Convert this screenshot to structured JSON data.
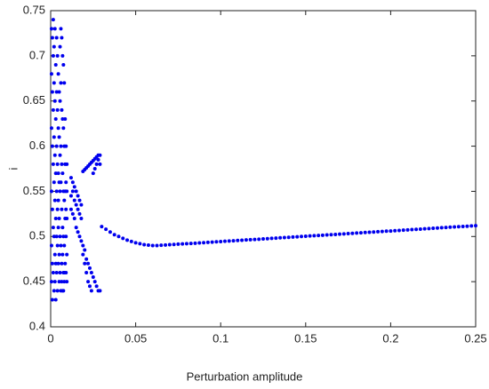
{
  "chart_data": {
    "type": "scatter",
    "x_label": "Perturbation amplitude",
    "y_label": "i",
    "color": "#0000ee",
    "xlim": [
      0,
      0.25
    ],
    "xticks": [
      0,
      0.05,
      0.1,
      0.15,
      0.2,
      0.25
    ],
    "ylim": [
      0.4,
      0.75
    ],
    "yticks": [
      0.4,
      0.45,
      0.5,
      0.55,
      0.6,
      0.65,
      0.7,
      0.75
    ],
    "x": [
      0.0005,
      0.0005,
      0.0005,
      0.0005,
      0.0005,
      0.0005,
      0.001,
      0.001,
      0.001,
      0.001,
      0.001,
      0.001,
      0.0015,
      0.0015,
      0.0015,
      0.0015,
      0.0015,
      0.0015,
      0.002,
      0.002,
      0.002,
      0.002,
      0.002,
      0.002,
      0.0025,
      0.0025,
      0.0025,
      0.0025,
      0.0025,
      0.0025,
      0.003,
      0.003,
      0.003,
      0.003,
      0.003,
      0.003,
      0.0035,
      0.0035,
      0.0035,
      0.0035,
      0.0035,
      0.0035,
      0.004,
      0.004,
      0.004,
      0.004,
      0.004,
      0.004,
      0.0045,
      0.0045,
      0.0045,
      0.0045,
      0.0045,
      0.0045,
      0.005,
      0.005,
      0.005,
      0.005,
      0.005,
      0.005,
      0.0055,
      0.0055,
      0.0055,
      0.0055,
      0.0055,
      0.0055,
      0.006,
      0.006,
      0.006,
      0.006,
      0.006,
      0.006,
      0.0065,
      0.0065,
      0.0065,
      0.0065,
      0.0065,
      0.0065,
      0.007,
      0.007,
      0.007,
      0.007,
      0.007,
      0.007,
      0.0075,
      0.0075,
      0.0075,
      0.0075,
      0.0075,
      0.0075,
      0.008,
      0.008,
      0.008,
      0.008,
      0.008,
      0.008,
      0.0085,
      0.0085,
      0.0085,
      0.0085,
      0.0085,
      0.009,
      0.009,
      0.009,
      0.009,
      0.009,
      0.0095,
      0.0095,
      0.0095,
      0.0095,
      0.0095,
      0.012,
      0.012,
      0.012,
      0.013,
      0.013,
      0.013,
      0.014,
      0.014,
      0.014,
      0.015,
      0.015,
      0.015,
      0.016,
      0.016,
      0.016,
      0.017,
      0.017,
      0.017,
      0.018,
      0.018,
      0.018,
      0.019,
      0.019,
      0.019,
      0.02,
      0.02,
      0.02,
      0.021,
      0.021,
      0.021,
      0.022,
      0.022,
      0.022,
      0.023,
      0.023,
      0.023,
      0.024,
      0.024,
      0.024,
      0.025,
      0.025,
      0.025,
      0.026,
      0.026,
      0.026,
      0.027,
      0.027,
      0.027,
      0.028,
      0.028,
      0.028,
      0.029,
      0.029,
      0.029,
      0.03,
      0.0325,
      0.035,
      0.0375,
      0.04,
      0.0425,
      0.045,
      0.0475,
      0.05,
      0.0525,
      0.055,
      0.0575,
      0.06,
      0.0625,
      0.065,
      0.0675,
      0.07,
      0.0725,
      0.075,
      0.0775,
      0.08,
      0.0825,
      0.085,
      0.0875,
      0.09,
      0.0925,
      0.095,
      0.0975,
      0.1,
      0.1025,
      0.105,
      0.1075,
      0.11,
      0.1125,
      0.115,
      0.1175,
      0.12,
      0.1225,
      0.125,
      0.1275,
      0.13,
      0.1325,
      0.135,
      0.1375,
      0.14,
      0.1425,
      0.145,
      0.1475,
      0.15,
      0.1525,
      0.155,
      0.1575,
      0.16,
      0.1625,
      0.165,
      0.1675,
      0.17,
      0.1725,
      0.175,
      0.1775,
      0.18,
      0.1825,
      0.185,
      0.1875,
      0.19,
      0.1925,
      0.195,
      0.1975,
      0.2,
      0.2025,
      0.205,
      0.2075,
      0.21,
      0.2125,
      0.215,
      0.2175,
      0.22,
      0.2225,
      0.225,
      0.2275,
      0.23,
      0.2325,
      0.235,
      0.2375,
      0.24,
      0.2425,
      0.245,
      0.2475,
      0.25
    ],
    "values": [
      0.73,
      0.68,
      0.62,
      0.55,
      0.49,
      0.45,
      0.72,
      0.66,
      0.6,
      0.53,
      0.47,
      0.43,
      0.74,
      0.7,
      0.64,
      0.58,
      0.51,
      0.46,
      0.71,
      0.67,
      0.61,
      0.56,
      0.5,
      0.44,
      0.73,
      0.65,
      0.59,
      0.54,
      0.48,
      0.45,
      0.69,
      0.63,
      0.57,
      0.52,
      0.47,
      0.43,
      0.72,
      0.66,
      0.6,
      0.55,
      0.5,
      0.46,
      0.7,
      0.64,
      0.58,
      0.53,
      0.49,
      0.44,
      0.68,
      0.62,
      0.57,
      0.54,
      0.51,
      0.47,
      0.66,
      0.61,
      0.56,
      0.52,
      0.48,
      0.45,
      0.71,
      0.65,
      0.59,
      0.55,
      0.5,
      0.46,
      0.73,
      0.67,
      0.6,
      0.56,
      0.49,
      0.44,
      0.72,
      0.64,
      0.58,
      0.53,
      0.47,
      0.45,
      0.7,
      0.63,
      0.57,
      0.51,
      0.48,
      0.44,
      0.69,
      0.62,
      0.55,
      0.5,
      0.46,
      0.44,
      0.67,
      0.6,
      0.54,
      0.49,
      0.46,
      0.45,
      0.63,
      0.58,
      0.55,
      0.52,
      0.47,
      0.6,
      0.56,
      0.53,
      0.5,
      0.46,
      0.58,
      0.55,
      0.52,
      0.48,
      0.45,
      0.565,
      0.545,
      0.53,
      0.56,
      0.55,
      0.525,
      0.555,
      0.54,
      0.52,
      0.55,
      0.535,
      0.51,
      0.545,
      0.53,
      0.505,
      0.54,
      0.525,
      0.5,
      0.535,
      0.52,
      0.495,
      0.572,
      0.49,
      0.48,
      0.574,
      0.485,
      0.47,
      0.576,
      0.475,
      0.46,
      0.578,
      0.47,
      0.45,
      0.58,
      0.465,
      0.445,
      0.582,
      0.46,
      0.44,
      0.584,
      0.57,
      0.455,
      0.586,
      0.575,
      0.45,
      0.588,
      0.58,
      0.445,
      0.59,
      0.585,
      0.44,
      0.59,
      0.58,
      0.44,
      0.511,
      0.508,
      0.505,
      0.502,
      0.5,
      0.498,
      0.496,
      0.4945,
      0.493,
      0.492,
      0.491,
      0.4905,
      0.49,
      0.49,
      0.4903,
      0.4906,
      0.4909,
      0.4912,
      0.4915,
      0.4918,
      0.4921,
      0.4923,
      0.4926,
      0.4929,
      0.4932,
      0.4935,
      0.4938,
      0.4941,
      0.4944,
      0.4947,
      0.495,
      0.4953,
      0.4956,
      0.4959,
      0.4962,
      0.4965,
      0.4967,
      0.497,
      0.4973,
      0.4976,
      0.4979,
      0.4982,
      0.4985,
      0.4988,
      0.4991,
      0.4994,
      0.4997,
      0.5,
      0.5003,
      0.5006,
      0.5009,
      0.5012,
      0.5014,
      0.5017,
      0.502,
      0.5023,
      0.5026,
      0.5029,
      0.5032,
      0.5035,
      0.5038,
      0.5041,
      0.5044,
      0.5047,
      0.505,
      0.5053,
      0.5056,
      0.5059,
      0.5061,
      0.5064,
      0.5067,
      0.507,
      0.5073,
      0.5076,
      0.5079,
      0.5082,
      0.5085,
      0.5088,
      0.5091,
      0.5094,
      0.5097,
      0.51,
      0.5103,
      0.5106,
      0.5108,
      0.5111,
      0.5114,
      0.5117,
      0.512
    ]
  }
}
